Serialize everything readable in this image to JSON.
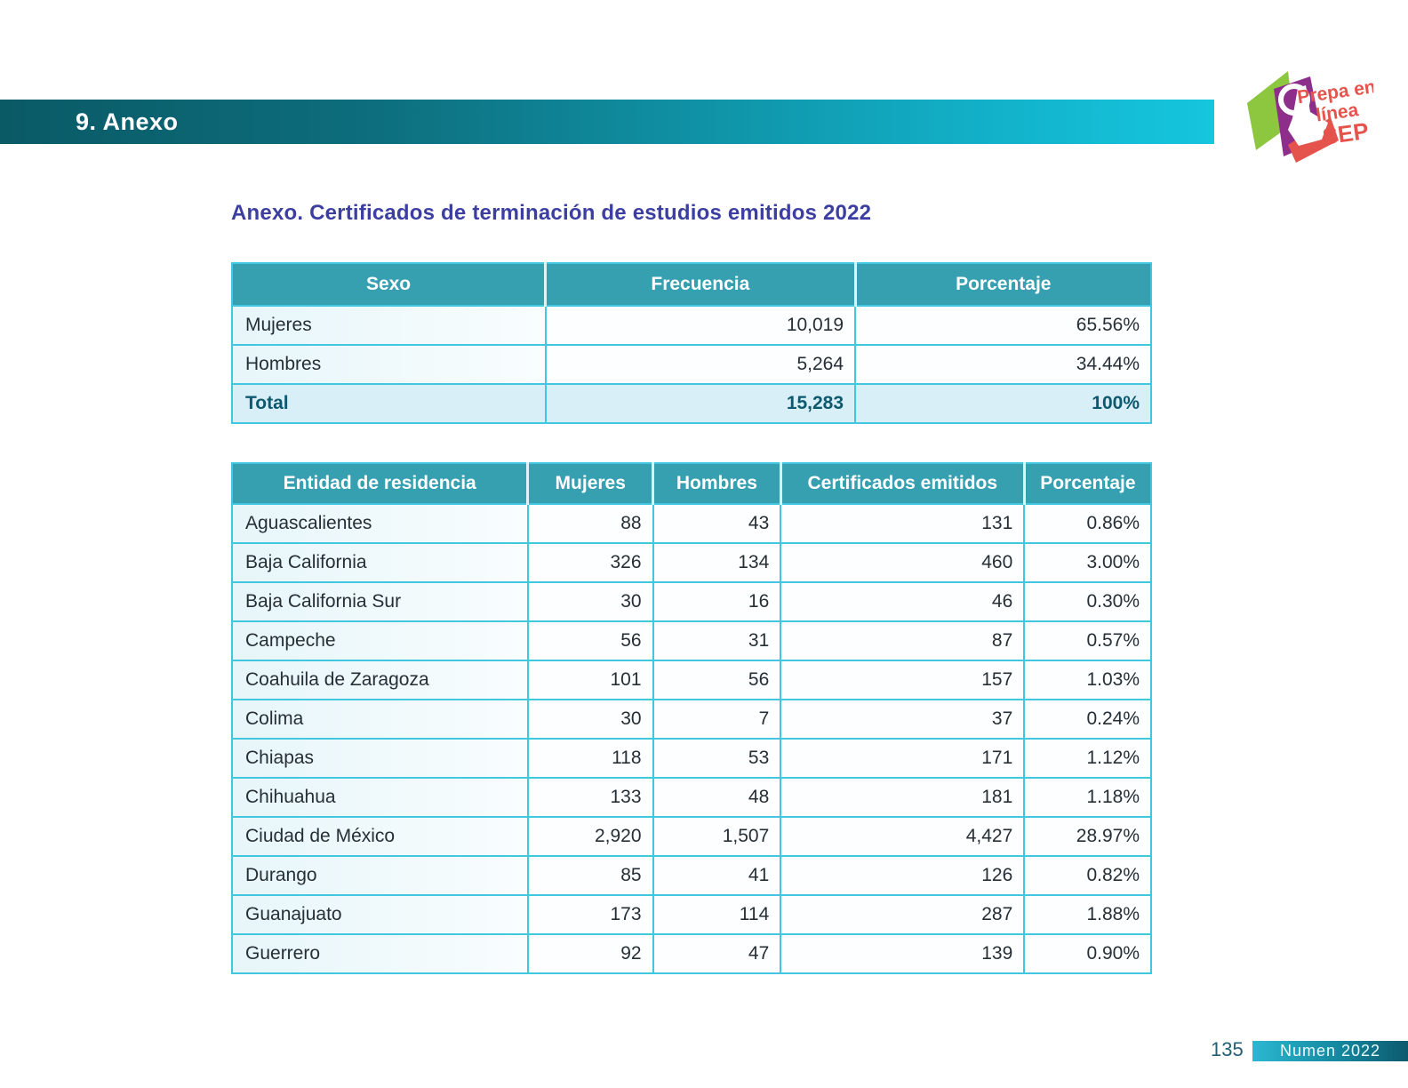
{
  "section": {
    "label": "9. Anexo"
  },
  "logo": {
    "line1": "Prepa en",
    "line2": "línea",
    "line3": "SEP"
  },
  "title": "Anexo. Certificados de terminación de estudios emitidos 2022",
  "table1": {
    "headers": [
      "Sexo",
      "Frecuencia",
      "Porcentaje"
    ],
    "rows": [
      [
        "Mujeres",
        "10,019",
        "65.56%"
      ],
      [
        "Hombres",
        "5,264",
        "34.44%"
      ]
    ],
    "total": [
      "Total",
      "15,283",
      "100%"
    ]
  },
  "table2": {
    "headers": [
      "Entidad de residencia",
      "Mujeres",
      "Hombres",
      "Certificados emitidos",
      "Porcentaje"
    ],
    "rows": [
      [
        "Aguascalientes",
        "88",
        "43",
        "131",
        "0.86%"
      ],
      [
        "Baja California",
        "326",
        "134",
        "460",
        "3.00%"
      ],
      [
        "Baja California Sur",
        "30",
        "16",
        "46",
        "0.30%"
      ],
      [
        "Campeche",
        "56",
        "31",
        "87",
        "0.57%"
      ],
      [
        "Coahuila de Zaragoza",
        "101",
        "56",
        "157",
        "1.03%"
      ],
      [
        "Colima",
        "30",
        "7",
        "37",
        "0.24%"
      ],
      [
        "Chiapas",
        "118",
        "53",
        "171",
        "1.12%"
      ],
      [
        "Chihuahua",
        "133",
        "48",
        "181",
        "1.18%"
      ],
      [
        "Ciudad de México",
        "2,920",
        "1,507",
        "4,427",
        "28.97%"
      ],
      [
        "Durango",
        "85",
        "41",
        "126",
        "0.82%"
      ],
      [
        "Guanajuato",
        "173",
        "114",
        "287",
        "1.88%"
      ],
      [
        "Guerrero",
        "92",
        "47",
        "139",
        "0.90%"
      ]
    ]
  },
  "footer": {
    "page_number": "135",
    "brand": "Numen 2022"
  },
  "colors": {
    "header_teal": "#369fb0",
    "border_cyan": "#41c7e0",
    "title_indigo": "#3c3fa1",
    "bar_gradient_start": "#0a5a66",
    "bar_gradient_end": "#15c6de",
    "total_row_bg": "#d9eff7",
    "total_text": "#0d5a70",
    "logo_green": "#8dc63f",
    "logo_purple": "#8e2e8b",
    "logo_coral": "#e4544d"
  }
}
